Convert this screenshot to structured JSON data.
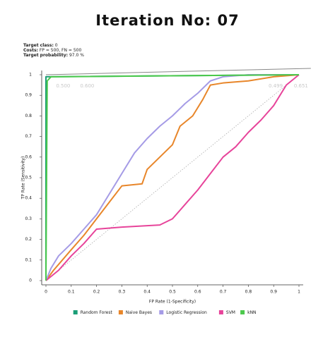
{
  "chart_data": {
    "type": "line",
    "title": "Iteration No: 07",
    "info": [
      {
        "label": "Target class:",
        "value": "0"
      },
      {
        "label": "Costs:",
        "value": "FP = 500, FN = 500"
      },
      {
        "label": "Target probability:",
        "value": "97.0 %"
      }
    ],
    "x_label": "FP Rate (1-Specificity)",
    "y_label": "TP Rate (Sensitivity)",
    "xlim": [
      0,
      1
    ],
    "ylim": [
      0,
      1
    ],
    "xticks": [
      0,
      0.1,
      0.2,
      0.3,
      0.4,
      0.5,
      0.6,
      0.7,
      0.8,
      0.9,
      1
    ],
    "yticks": [
      0,
      0.1,
      0.2,
      0.3,
      0.4,
      0.5,
      0.6,
      0.7,
      0.8,
      0.9,
      1
    ],
    "diagonal": true,
    "iso_line": {
      "x": [
        0,
        1.047
      ],
      "values": [
        1,
        1.031
      ],
      "color": "#888888"
    },
    "annotations": [
      {
        "text": "0.500",
        "x": 0.04,
        "y": 0.97
      },
      {
        "text": "0.600",
        "x": 0.135,
        "y": 0.97
      },
      {
        "text": "0.499",
        "x": 0.88,
        "y": 0.97
      },
      {
        "text": "0.651",
        "x": 0.98,
        "y": 0.97
      }
    ],
    "series": [
      {
        "name": "Random Forest",
        "color": "#1b9e77",
        "x": [
          0,
          0,
          1
        ],
        "values": [
          0,
          0.99,
          1
        ]
      },
      {
        "name": "Naive Bayes",
        "color": "#e8862a",
        "x": [
          0,
          0.03,
          0.1,
          0.15,
          0.2,
          0.25,
          0.3,
          0.38,
          0.4,
          0.45,
          0.5,
          0.53,
          0.58,
          0.62,
          0.65,
          0.7,
          0.8,
          0.9,
          1
        ],
        "values": [
          0,
          0.05,
          0.15,
          0.22,
          0.3,
          0.38,
          0.46,
          0.47,
          0.54,
          0.6,
          0.66,
          0.75,
          0.8,
          0.88,
          0.95,
          0.96,
          0.97,
          0.99,
          1
        ]
      },
      {
        "name": "Logistic Regression",
        "color": "#a59be6",
        "x": [
          0,
          0.02,
          0.05,
          0.1,
          0.15,
          0.2,
          0.25,
          0.3,
          0.35,
          0.4,
          0.45,
          0.5,
          0.55,
          0.6,
          0.65,
          0.7,
          0.8,
          1
        ],
        "values": [
          0,
          0.06,
          0.12,
          0.18,
          0.25,
          0.32,
          0.42,
          0.52,
          0.62,
          0.69,
          0.75,
          0.8,
          0.86,
          0.91,
          0.97,
          0.99,
          1,
          1
        ]
      },
      {
        "name": "SVM",
        "color": "#e7449a",
        "x": [
          0,
          0.05,
          0.1,
          0.15,
          0.2,
          0.3,
          0.45,
          0.5,
          0.55,
          0.6,
          0.65,
          0.7,
          0.75,
          0.8,
          0.85,
          0.9,
          0.95,
          1
        ],
        "values": [
          0,
          0.05,
          0.12,
          0.18,
          0.25,
          0.26,
          0.27,
          0.3,
          0.37,
          0.44,
          0.52,
          0.6,
          0.65,
          0.72,
          0.78,
          0.85,
          0.95,
          1
        ]
      },
      {
        "name": "kNN",
        "color": "#4cc94c",
        "x": [
          0,
          0.005,
          0.02,
          1
        ],
        "values": [
          0,
          0.97,
          0.99,
          1
        ]
      }
    ]
  }
}
